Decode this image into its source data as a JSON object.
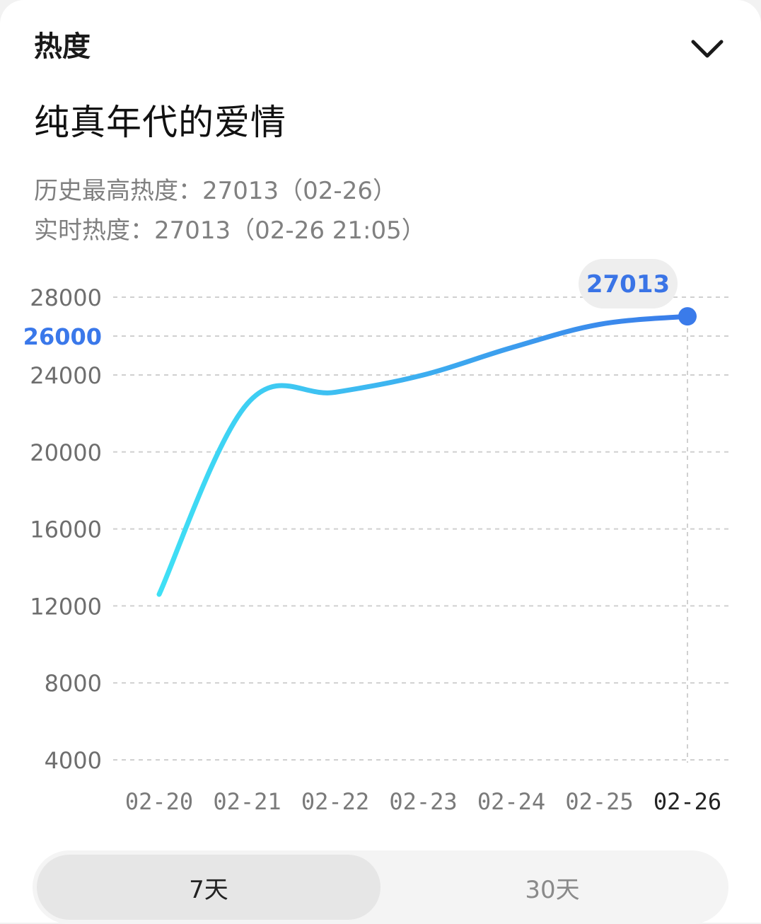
{
  "header": {
    "section_title": "热度",
    "collapse_icon": "chevron-down-icon"
  },
  "topic": {
    "title": "纯真年代的爱情"
  },
  "stats": {
    "history_peak": "历史最高热度：27013（02-26）",
    "realtime": "实时热度：27013（02-26 21:05）"
  },
  "colors": {
    "accent": "#3a78ea",
    "line_start": "#3fe0f5",
    "line_end": "#3a7bea",
    "grid": "#d0d0d0"
  },
  "chart_data": {
    "type": "line",
    "categories": [
      "02-20",
      "02-21",
      "02-22",
      "02-23",
      "02-24",
      "02-25",
      "02-26"
    ],
    "series": [
      {
        "values": [
          12600,
          22500,
          23100,
          24000,
          25400,
          26600,
          27013
        ]
      }
    ],
    "y_ticks": [
      "28000",
      "26000",
      "24000",
      "20000",
      "16000",
      "12000",
      "8000",
      "4000"
    ],
    "highlighted_tick": "26000",
    "selected": {
      "category": "02-26",
      "value": "27013"
    },
    "grid": true
  },
  "range_tabs": {
    "tab_7": "7天",
    "tab_30": "30天",
    "active": "7天"
  }
}
